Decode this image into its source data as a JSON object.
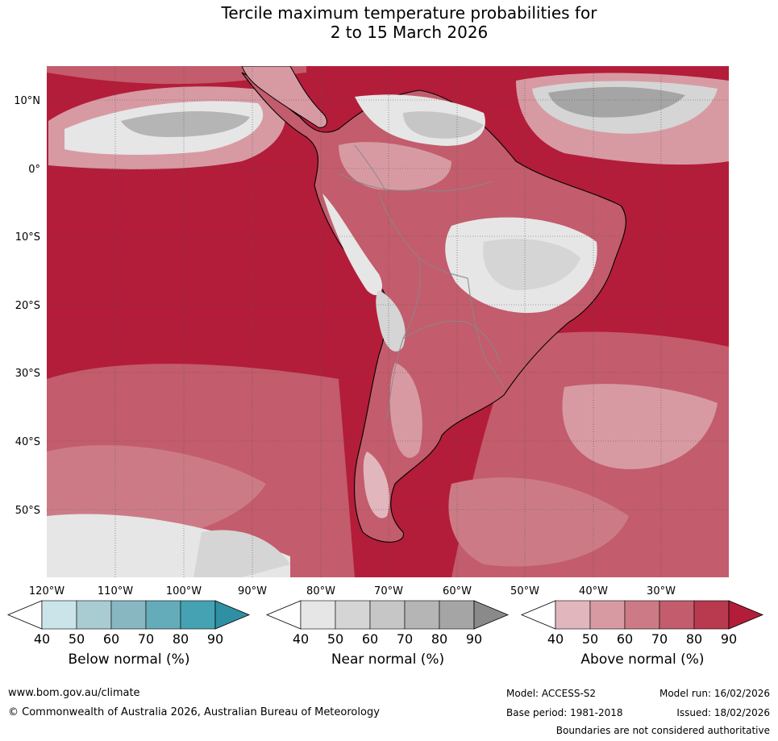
{
  "title_line1": "Tercile maximum temperature probabilities for",
  "title_line2": "2 to 15 March 2026",
  "map": {
    "lon_labels": [
      "120°W",
      "110°W",
      "100°W",
      "90°W",
      "80°W",
      "70°W",
      "60°W",
      "50°W",
      "40°W",
      "30°W"
    ],
    "lat_labels": [
      "10°N",
      "0°",
      "10°S",
      "20°S",
      "30°S",
      "40°S",
      "50°S"
    ],
    "ocean_color": "#b31d39"
  },
  "colorbars": [
    {
      "name": "below",
      "title": "Below normal (%)",
      "ticks": [
        "40",
        "50",
        "60",
        "70",
        "80",
        "90"
      ],
      "colors": [
        "#ffffff",
        "#cbe4ea",
        "#a9cbd2",
        "#88b7c1",
        "#64acb9",
        "#45a2b2",
        "#2f90a4"
      ]
    },
    {
      "name": "near",
      "title": "Near normal (%)",
      "ticks": [
        "40",
        "50",
        "60",
        "70",
        "80",
        "90"
      ],
      "colors": [
        "#ffffff",
        "#e6e6e6",
        "#d5d5d5",
        "#c6c6c6",
        "#b5b5b5",
        "#a5a5a5",
        "#8a8a8a"
      ]
    },
    {
      "name": "above",
      "title": "Above normal (%)",
      "ticks": [
        "40",
        "50",
        "60",
        "70",
        "80",
        "90"
      ],
      "colors": [
        "#ffffff",
        "#e2b6bd",
        "#d79aa3",
        "#cc7b86",
        "#c35c6c",
        "#b9394f",
        "#b31d39"
      ]
    }
  ],
  "footer": {
    "url": "www.bom.gov.au/climate",
    "copyright": "© Commonwealth of Australia 2026, Australian Bureau of Meteorology",
    "model": "Model: ACCESS-S2",
    "model_run": "Model run: 16/02/2026",
    "base_period": "Base period: 1981-2018",
    "issued": "Issued: 18/02/2026",
    "disclaimer": "Boundaries are not considered authoritative"
  }
}
